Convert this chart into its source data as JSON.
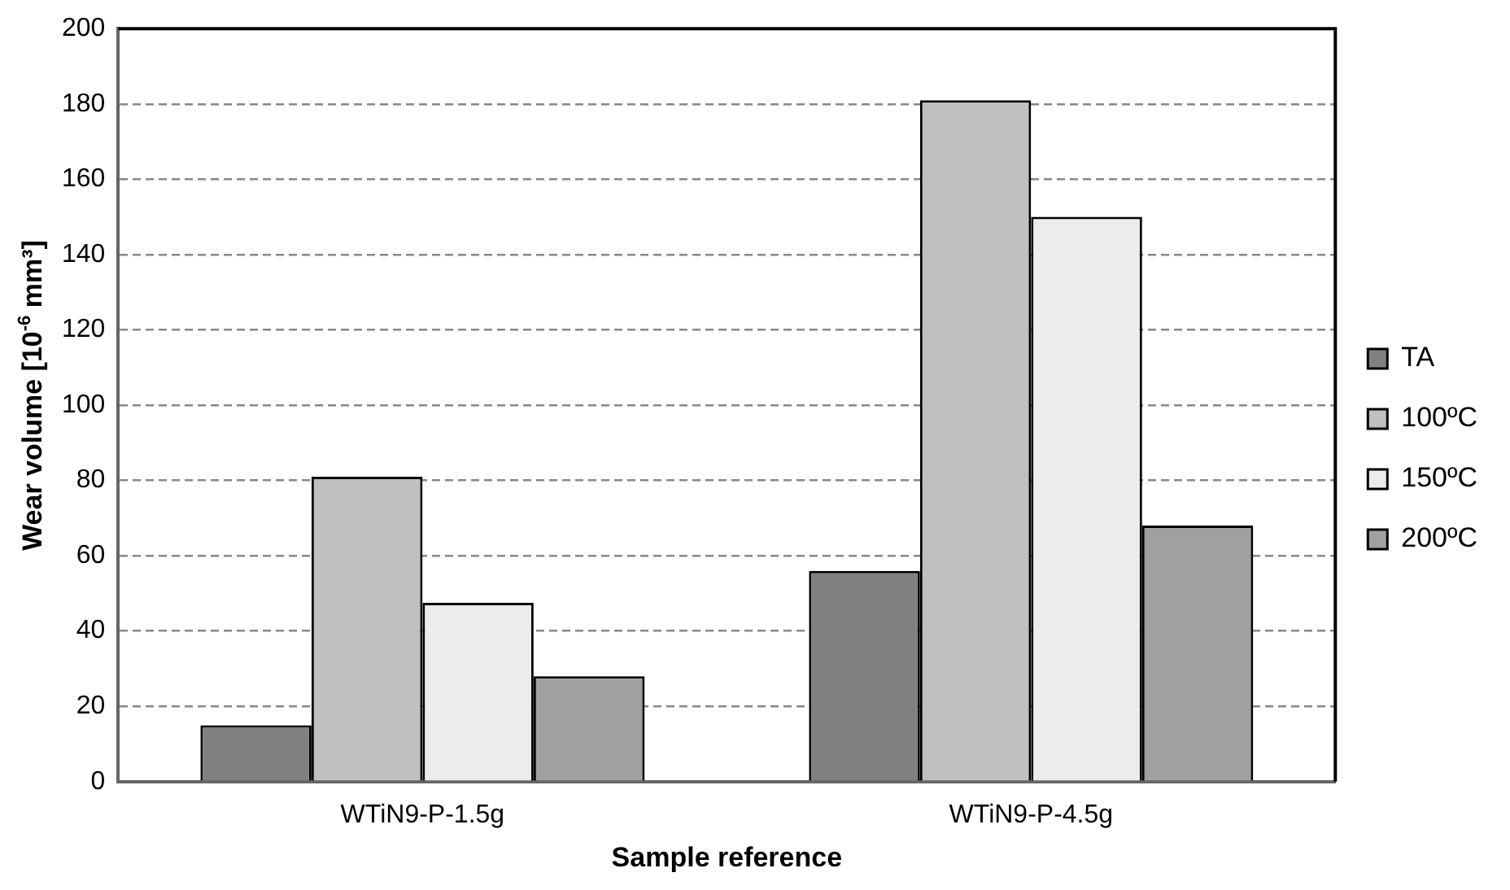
{
  "chart_data": {
    "type": "bar",
    "xlabel": "Sample reference",
    "ylabel": "Wear volume [10$^{-6}$ mm³]",
    "categories": [
      "WTiN9-P-1.5g",
      "WTiN9-P-4.5g"
    ],
    "series": [
      {
        "name": "TA",
        "color": "#808080",
        "values": [
          15,
          56
        ]
      },
      {
        "name": "100ºC",
        "color": "#c0c0c0",
        "values": [
          81,
          181
        ]
      },
      {
        "name": "150ºC",
        "color": "#ececec",
        "values": [
          47.5,
          150
        ]
      },
      {
        "name": "200ºC",
        "color": "#a0a0a0",
        "values": [
          28,
          68
        ]
      }
    ],
    "ylim": [
      0,
      200
    ],
    "yticks": [
      0,
      20,
      40,
      60,
      80,
      100,
      120,
      140,
      160,
      180,
      200
    ],
    "grid": "y",
    "legend": "right"
  }
}
